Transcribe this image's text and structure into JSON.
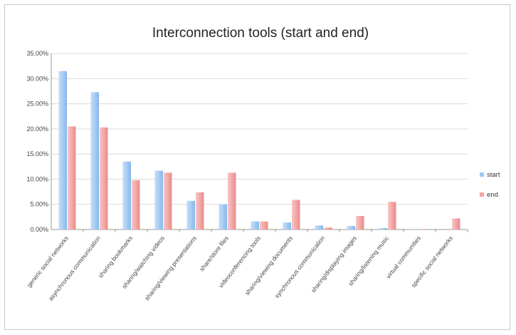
{
  "chart_data": {
    "type": "bar",
    "title": "Interconnection tools (start and end)",
    "xlabel": "",
    "ylabel": "",
    "ylim": [
      0,
      35
    ],
    "y_ticks": [
      "0.00%",
      "5.00%",
      "10.00%",
      "15.00%",
      "20.00%",
      "25.00%",
      "30.00%",
      "35.00%"
    ],
    "grid": true,
    "legend_position": "right",
    "categories": [
      "generic social networks",
      "asynchronous communication",
      "sharing bookmarks",
      "sharing/watching videos",
      "sharing/viewing presentations",
      "share/store files",
      "videoconferencing tools",
      "sharing/viewing documents",
      "synchronous communication",
      "sharing/displaying images",
      "sharing/listening music",
      "virtual communities",
      "specific social networks"
    ],
    "series": [
      {
        "name": "start",
        "color": "#9ec8f2",
        "values": [
          31.5,
          27.3,
          13.5,
          11.7,
          5.7,
          5.0,
          1.6,
          1.4,
          0.8,
          0.7,
          0.3,
          0.1,
          0.0
        ]
      },
      {
        "name": "end",
        "color": "#f2a3a3",
        "values": [
          20.5,
          20.3,
          9.8,
          11.3,
          7.4,
          11.3,
          1.6,
          5.9,
          0.4,
          2.7,
          5.5,
          0.1,
          2.2
        ]
      }
    ]
  }
}
